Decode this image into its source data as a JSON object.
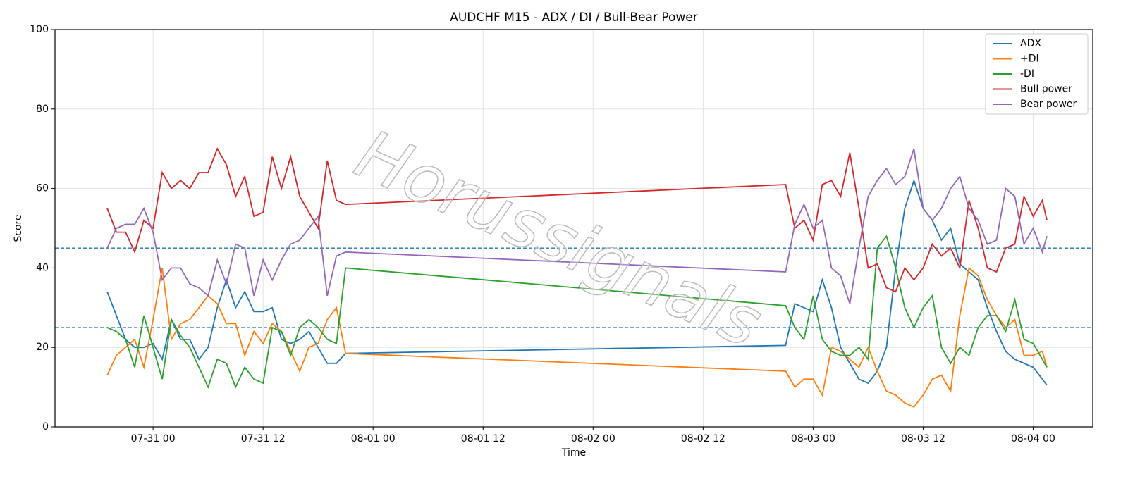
{
  "chart_data": {
    "type": "line",
    "title": "AUDCHF M15 - ADX / DI / Bull-Bear Power",
    "x_label": "Time",
    "y_label": "Score",
    "watermark": "Horussignals",
    "x": [
      -5,
      -4,
      -3,
      -2,
      -1,
      0,
      1,
      2,
      3,
      4,
      5,
      6,
      7,
      8,
      9,
      10,
      11,
      12,
      13,
      14,
      15,
      16,
      17,
      18,
      19,
      20,
      21,
      69,
      70,
      71,
      72,
      73,
      74,
      75,
      76,
      77,
      78,
      79,
      80,
      81,
      82,
      83,
      84,
      85,
      86,
      87,
      88,
      89,
      90,
      91,
      92,
      93,
      94,
      95,
      96,
      97,
      97.5
    ],
    "series": [
      {
        "name": "ADX",
        "color": "#1f77b4",
        "values": [
          34,
          28,
          22,
          20,
          20,
          21,
          17,
          27,
          22,
          22,
          17,
          20,
          30,
          37,
          30,
          34,
          29,
          29,
          30,
          22,
          21,
          22,
          24,
          20,
          16,
          16,
          18.5,
          20.5,
          31,
          30,
          29,
          37,
          30,
          20,
          16,
          12,
          11,
          14,
          20,
          40,
          55,
          62,
          55,
          52,
          47,
          50,
          41,
          39,
          37,
          30,
          24,
          19,
          17,
          16,
          15,
          12,
          10.5
        ]
      },
      {
        "name": "+DI",
        "color": "#ff7f0e",
        "values": [
          13,
          18,
          20,
          22,
          15,
          27,
          40,
          22,
          26,
          27,
          30,
          33,
          31,
          26,
          26,
          18,
          24,
          21,
          26,
          24,
          19,
          14,
          20,
          21,
          27,
          30,
          18.5,
          14,
          10,
          12,
          12,
          8,
          20,
          19,
          17,
          15,
          20,
          14,
          9,
          8,
          6,
          5,
          8,
          12,
          13,
          9,
          28,
          40,
          38,
          32,
          28,
          25,
          27,
          18,
          18,
          19,
          15
        ]
      },
      {
        "name": "-DI",
        "color": "#2ca02c",
        "values": [
          25,
          24,
          22,
          15,
          28,
          20,
          12,
          27,
          23,
          20,
          15,
          10,
          17,
          16,
          10,
          15,
          12,
          11,
          25,
          24,
          18,
          25,
          27,
          25,
          22,
          21,
          40,
          30.5,
          25,
          22,
          33,
          22,
          19,
          18,
          18,
          20,
          17,
          45,
          48,
          40,
          30,
          25,
          30,
          33,
          20,
          16,
          20,
          18,
          25,
          28,
          28,
          24,
          32,
          22,
          21,
          17,
          15
        ]
      },
      {
        "name": "Bull power",
        "color": "#d62728",
        "values": [
          55,
          49,
          49,
          44,
          52,
          50,
          64,
          60,
          62,
          60,
          64,
          64,
          70,
          66,
          58,
          63,
          53,
          54,
          68,
          60,
          68,
          58,
          54,
          50,
          67,
          57,
          56,
          61,
          50,
          52,
          47,
          61,
          62,
          58,
          69,
          55,
          40,
          41,
          35,
          34,
          40,
          37,
          40,
          46,
          43,
          45,
          40,
          57,
          50,
          40,
          39,
          45,
          46,
          58,
          53,
          57,
          52
        ]
      },
      {
        "name": "Bear power",
        "color": "#9467bd",
        "values": [
          45,
          50,
          51,
          51,
          55,
          49,
          37,
          40,
          40,
          36,
          35,
          33,
          42,
          36,
          46,
          45,
          33,
          42,
          37,
          42,
          46,
          47,
          50,
          53,
          33,
          43,
          44,
          39,
          51,
          56,
          50,
          52,
          40,
          38,
          31,
          45,
          58,
          62,
          65,
          61,
          63,
          70,
          55,
          52,
          55,
          60,
          63,
          55,
          52,
          46,
          47,
          60,
          58,
          46,
          50,
          44,
          48
        ]
      }
    ],
    "hlines": [
      45,
      25
    ],
    "hline_color": "#1f77b4",
    "xlim": [
      -10.7,
      102.5
    ],
    "xticks": [
      {
        "value": 0,
        "label": "07-31 00"
      },
      {
        "value": 12,
        "label": "07-31 12"
      },
      {
        "value": 24,
        "label": "08-01 00"
      },
      {
        "value": 36,
        "label": "08-01 12"
      },
      {
        "value": 48,
        "label": "08-02 00"
      },
      {
        "value": 60,
        "label": "08-02 12"
      },
      {
        "value": 72,
        "label": "08-03 00"
      },
      {
        "value": 84,
        "label": "08-03 12"
      },
      {
        "value": 96,
        "label": "08-04 00"
      }
    ],
    "ylim": [
      0,
      100
    ],
    "yticks": [
      0,
      20,
      40,
      60,
      80,
      100
    ],
    "grid": true,
    "legend": "upper-right"
  }
}
